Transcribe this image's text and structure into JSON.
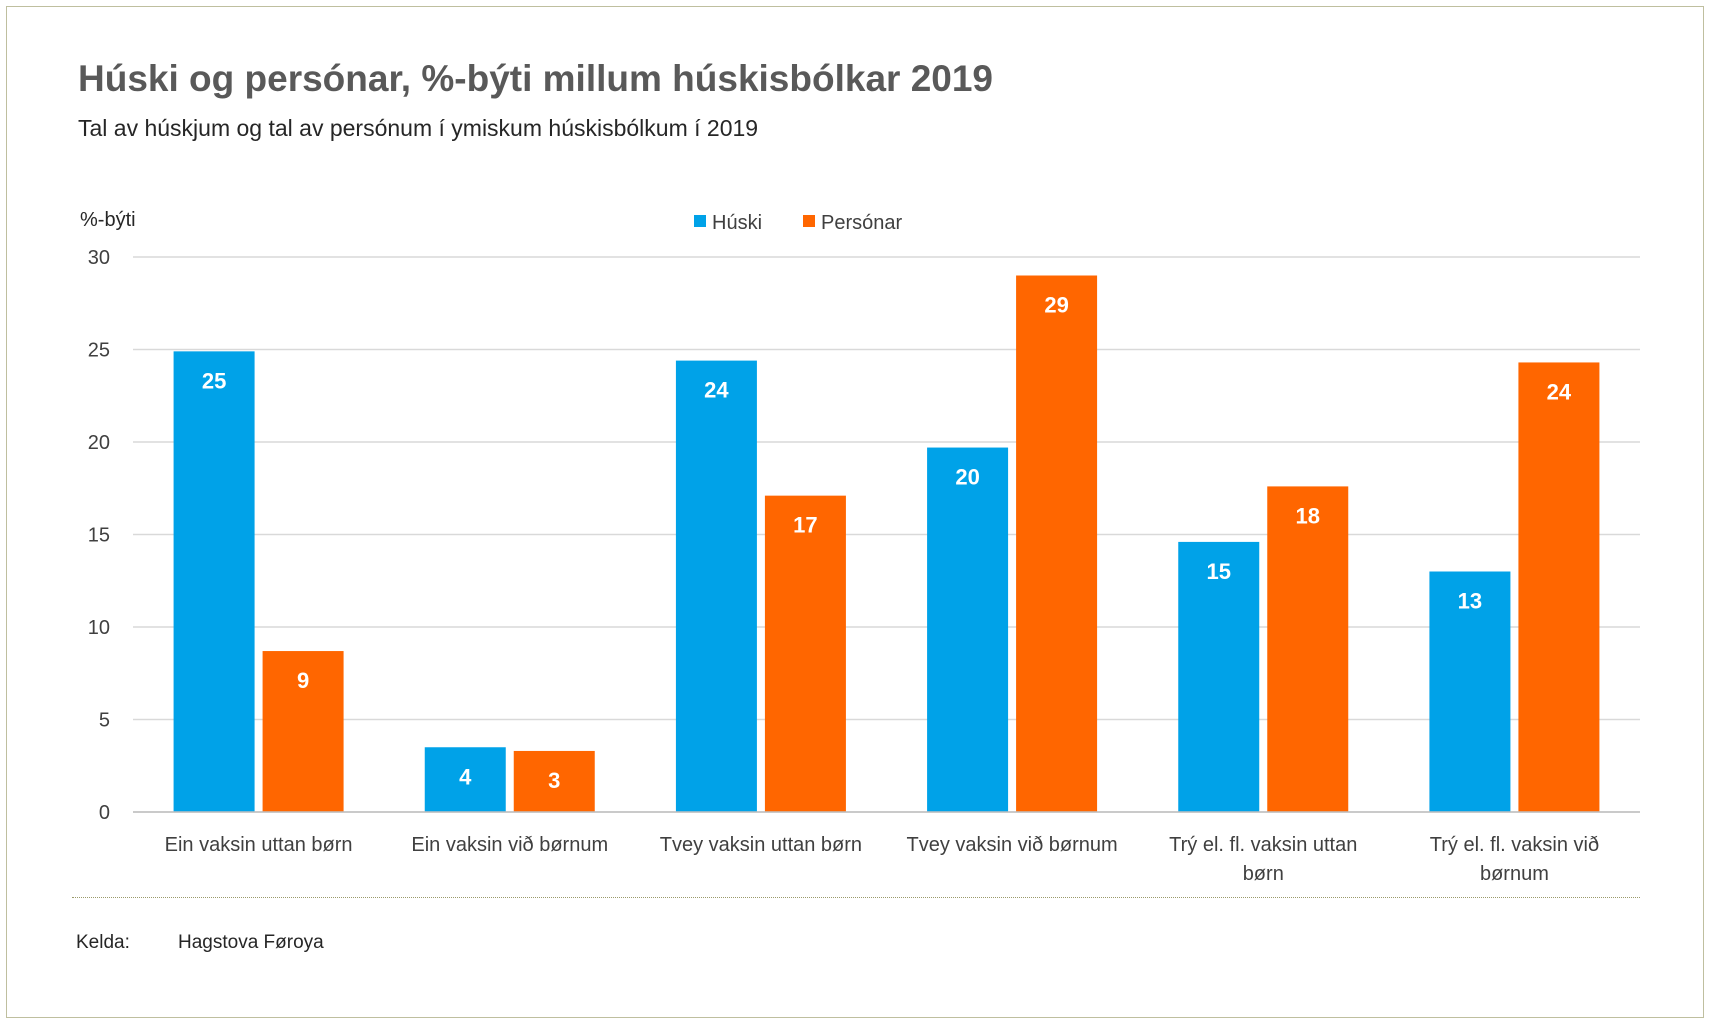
{
  "chart_data": {
    "type": "bar",
    "title": "Húski og persónar, %-býti millum húskisbólkar 2019",
    "subtitle": "Tal av húskjum og tal av persónum í ymiskum húskisbólkum í 2019",
    "ylabel": "%-býti",
    "ylim": [
      0,
      30
    ],
    "yticks": [
      0,
      5,
      10,
      15,
      20,
      25,
      30
    ],
    "categories": [
      [
        "Ein vaksin uttan børn"
      ],
      [
        "Ein vaksin við børnum"
      ],
      [
        "Tvey vaksin uttan børn"
      ],
      [
        "Tvey vaksin við børnum"
      ],
      [
        "Trý el. fl. vaksin uttan",
        "børn"
      ],
      [
        "Trý el. fl. vaksin við",
        "børnum"
      ]
    ],
    "series": [
      {
        "name": "Húski",
        "color": "#00a2e8",
        "values": [
          24.9,
          3.5,
          24.4,
          19.7,
          14.6,
          13.0
        ],
        "labels": [
          "25",
          "4",
          "24",
          "20",
          "15",
          "13"
        ]
      },
      {
        "name": "Persónar",
        "color": "#ff6600",
        "values": [
          8.7,
          3.3,
          17.1,
          29.0,
          17.6,
          24.3
        ],
        "labels": [
          "9",
          "3",
          "17",
          "29",
          "18",
          "24"
        ]
      }
    ],
    "legend_position": "top-center",
    "grid": true
  },
  "source": {
    "label": "Kelda:",
    "value": "Hagstova Føroya"
  }
}
